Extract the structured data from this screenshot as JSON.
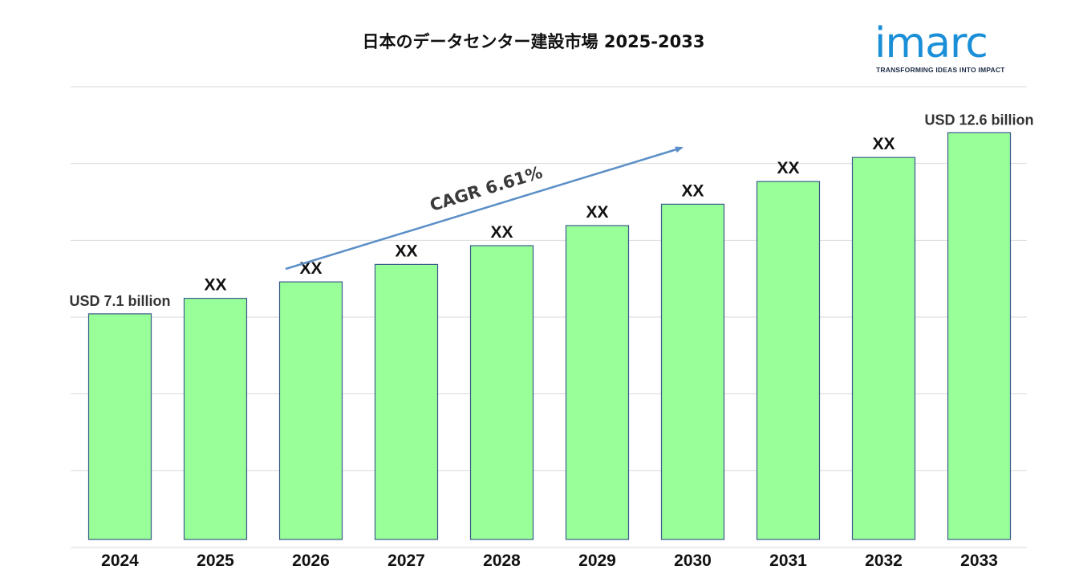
{
  "title": "日本のデータセンター建設市場   2025-2033",
  "logo": {
    "word": "imarc",
    "tagline": "TRANSFORMING IDEAS INTO IMPACT",
    "color": "#1a8fd8"
  },
  "colors": {
    "bar_fill": "#99ff99",
    "bar_stroke": "#3a5a8a",
    "arrow": "#5b8fc7",
    "grid": "#d9d9d9"
  },
  "chart_data": {
    "type": "bar",
    "categories": [
      "2024",
      "2025",
      "2026",
      "2027",
      "2028",
      "2029",
      "2030",
      "2031",
      "2032",
      "2033"
    ],
    "values": [
      7.1,
      7.57,
      8.07,
      8.6,
      9.17,
      9.78,
      10.43,
      11.12,
      11.85,
      12.6
    ],
    "bar_labels": [
      "USD  7.1 billion",
      "XX",
      "XX",
      "XX",
      "XX",
      "XX",
      "XX",
      "XX",
      "XX",
      "USD  12.6 billion"
    ],
    "ylim": [
      0,
      14
    ],
    "grid": true,
    "annotation": "CAGR   6.61%",
    "title": "日本のデータセンター建設市場   2025-2033"
  }
}
